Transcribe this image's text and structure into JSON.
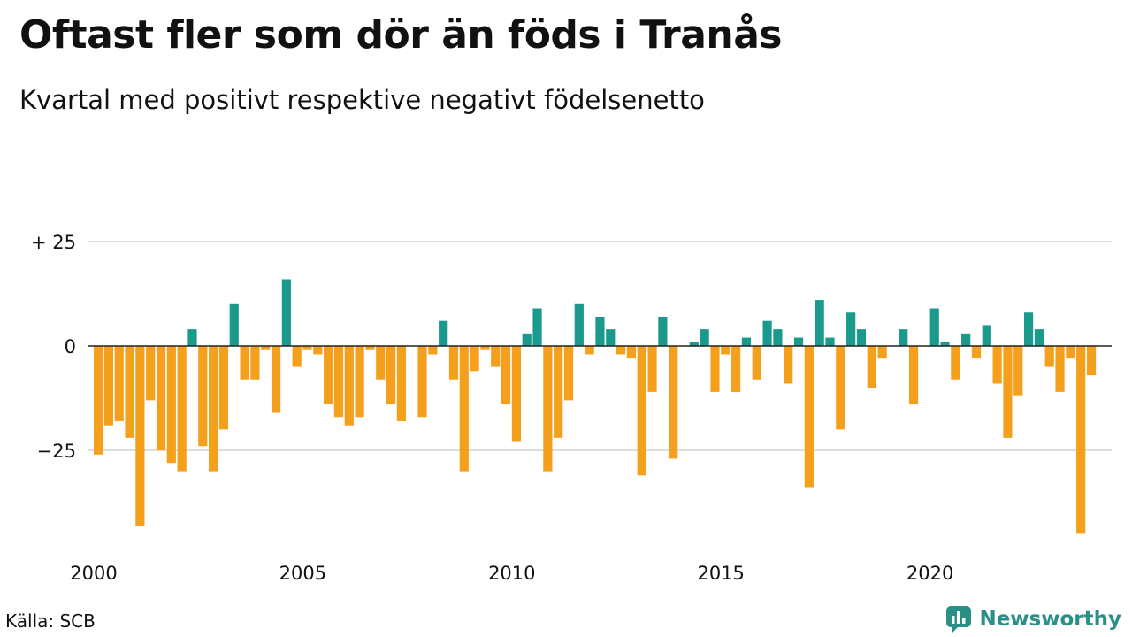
{
  "title": "Oftast fler som dör än föds i Tranås",
  "subtitle": "Kvartal med positivt respektive negativt födelsenetto",
  "source": "Källa: SCB",
  "brand": "Newsworthy",
  "colors": {
    "positive": "#1a9a8c",
    "negative": "#f5a01d",
    "grid": "#dddddd",
    "zero": "#222222",
    "brand": "#2a8f86"
  },
  "chart_data": {
    "type": "bar",
    "x_start": 2000,
    "periods_per_year": 4,
    "ylim": [
      -47,
      27
    ],
    "yticks": [
      {
        "value": 25,
        "label": "+ 25"
      },
      {
        "value": 0,
        "label": "0"
      },
      {
        "value": -25,
        "label": "−25"
      }
    ],
    "xticks": [
      "2000",
      "2005",
      "2010",
      "2015",
      "2020"
    ],
    "values": [
      -26,
      -19,
      -18,
      -22,
      -43,
      -13,
      -25,
      -28,
      -30,
      4,
      -24,
      -30,
      -20,
      10,
      -8,
      -8,
      -1,
      -16,
      16,
      -5,
      -1,
      -2,
      -14,
      -17,
      -19,
      -17,
      -1,
      -8,
      -14,
      -18,
      0,
      -17,
      -2,
      6,
      -8,
      -30,
      -6,
      -1,
      -5,
      -14,
      -23,
      3,
      9,
      -30,
      -22,
      -13,
      10,
      -2,
      7,
      4,
      -2,
      -3,
      -31,
      -11,
      7,
      -27,
      0,
      1,
      4,
      -11,
      -2,
      -11,
      2,
      -8,
      6,
      4,
      -9,
      2,
      -34,
      11,
      2,
      -20,
      8,
      4,
      -10,
      -3,
      0,
      4,
      -14,
      0,
      9,
      1,
      -8,
      3,
      -3,
      5,
      -9,
      -22,
      -12,
      8,
      4,
      -5,
      -11,
      -3,
      -45,
      -7
    ]
  }
}
